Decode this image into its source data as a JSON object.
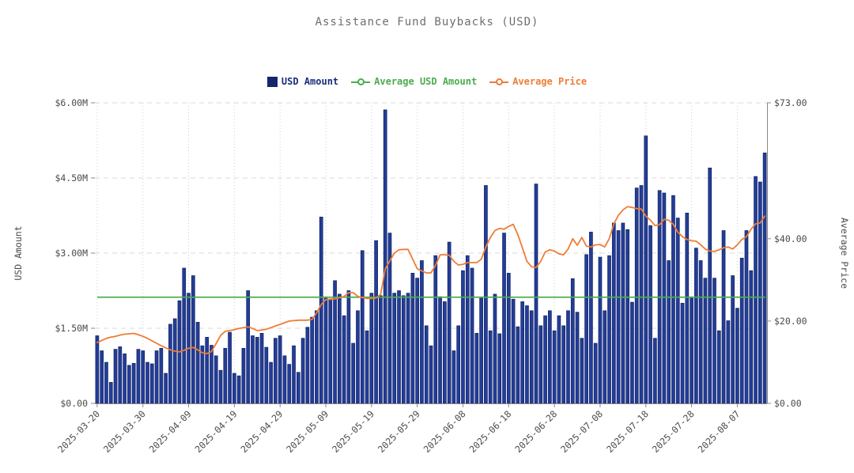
{
  "title": "Assistance Fund Buybacks (USD)",
  "legend": {
    "items": [
      {
        "label": "USD Amount",
        "type": "bar",
        "color": "#15256e"
      },
      {
        "label": "Average USD Amount",
        "type": "line",
        "color": "#4cac4f"
      },
      {
        "label": "Average Price",
        "type": "line",
        "color": "#ee7d36"
      }
    ]
  },
  "axes": {
    "left": {
      "label": "USD Amount",
      "tick_labels": [
        "$0.00",
        "$1.50M",
        "$3.00M",
        "$4.50M",
        "$6.00M"
      ],
      "tick_values": [
        0,
        1.5,
        3,
        4.5,
        6
      ]
    },
    "right": {
      "label": "Average Price",
      "tick_labels": [
        "$0.00",
        "$20.00",
        "$40.00",
        "$73.00"
      ],
      "tick_values": [
        0,
        20,
        40,
        73
      ]
    },
    "x": {
      "tick_labels": [
        "2025-03-20",
        "2025-03-30",
        "2025-04-09",
        "2025-04-19",
        "2025-04-29",
        "2025-05-09",
        "2025-05-19",
        "2025-05-29",
        "2025-06-08",
        "2025-06-18",
        "2025-06-28",
        "2025-07-08",
        "2025-07-18",
        "2025-07-28",
        "2025-08-07"
      ],
      "tick_day_indices": [
        0,
        10,
        20,
        30,
        40,
        50,
        60,
        70,
        80,
        90,
        100,
        110,
        120,
        130,
        140
      ]
    }
  },
  "chart_data": {
    "type": "combo",
    "x_start_date": "2025-03-20",
    "x_end_date": "2025-08-13",
    "x_frequency": "daily",
    "left_axis_range": [
      0,
      6
    ],
    "left_axis_unit": "USD millions",
    "right_axis_range": [
      0,
      73
    ],
    "right_axis_unit": "USD",
    "grid": true,
    "legend_position": "top-center",
    "series": [
      {
        "name": "USD Amount",
        "type": "bar",
        "axis": "left",
        "color": "#243d96",
        "edge_color": "#0e2167",
        "values": [
          1.35,
          1.05,
          0.82,
          0.42,
          1.08,
          1.13,
          0.99,
          0.76,
          0.8,
          1.08,
          1.05,
          0.82,
          0.79,
          1.05,
          1.1,
          0.6,
          1.58,
          1.69,
          2.05,
          2.7,
          2.2,
          2.55,
          1.62,
          1.15,
          1.32,
          1.16,
          0.95,
          0.66,
          1.1,
          1.42,
          0.6,
          0.55,
          1.1,
          2.25,
          1.35,
          1.32,
          1.4,
          1.12,
          0.82,
          1.3,
          1.35,
          0.95,
          0.78,
          1.15,
          0.62,
          1.3,
          1.52,
          1.72,
          1.85,
          3.72,
          2.1,
          2.08,
          2.45,
          2.18,
          1.75,
          2.25,
          1.2,
          1.85,
          3.05,
          1.45,
          2.2,
          3.25,
          2.15,
          5.86,
          3.4,
          2.2,
          2.25,
          2.15,
          2.2,
          2.6,
          2.5,
          2.85,
          1.55,
          1.15,
          2.95,
          2.13,
          2.03,
          3.22,
          1.05,
          1.55,
          2.65,
          2.95,
          2.7,
          1.4,
          2.1,
          4.35,
          1.45,
          2.18,
          1.39,
          3.4,
          2.6,
          2.08,
          1.53,
          2.03,
          1.95,
          1.85,
          4.38,
          1.55,
          1.75,
          1.85,
          1.45,
          1.75,
          1.55,
          1.85,
          2.49,
          1.82,
          1.3,
          2.97,
          3.42,
          1.2,
          2.92,
          1.85,
          2.95,
          3.6,
          3.45,
          3.6,
          3.47,
          2.02,
          4.3,
          4.35,
          5.34,
          3.55,
          1.3,
          4.25,
          4.2,
          2.85,
          4.15,
          3.7,
          2.0,
          3.8,
          2.1,
          3.1,
          2.85,
          2.5,
          4.7,
          2.5,
          1.45,
          3.45,
          1.65,
          2.55,
          1.9,
          2.9,
          3.45,
          2.65,
          4.53,
          4.42,
          5.0
        ]
      },
      {
        "name": "Average USD Amount",
        "type": "line",
        "axis": "left",
        "color": "#4cac4f",
        "constant_value": 2.12
      },
      {
        "name": "Average Price",
        "type": "line",
        "axis": "right",
        "color": "#ee7d36",
        "values": [
          14.8,
          15.3,
          15.8,
          16.1,
          16.3,
          16.6,
          16.8,
          16.9,
          17.0,
          16.7,
          16.3,
          15.8,
          15.2,
          14.6,
          14.0,
          13.5,
          13.0,
          12.7,
          12.5,
          12.9,
          13.4,
          13.6,
          13.0,
          12.3,
          12.1,
          12.6,
          14.5,
          16.5,
          17.5,
          17.7,
          17.9,
          18.2,
          18.4,
          18.6,
          18.2,
          17.7,
          17.8,
          18.0,
          18.4,
          18.8,
          19.2,
          19.6,
          20.0,
          20.1,
          20.2,
          20.2,
          20.2,
          20.4,
          22.0,
          24.0,
          25.2,
          25.3,
          25.4,
          25.7,
          26.0,
          26.9,
          26.9,
          26.0,
          25.7,
          25.5,
          25.5,
          25.6,
          26.5,
          32.7,
          34.6,
          36.5,
          37.3,
          37.4,
          37.4,
          35.0,
          32.7,
          32.2,
          31.7,
          31.7,
          33.5,
          36.1,
          36.1,
          36.0,
          34.5,
          33.6,
          33.8,
          34.2,
          34.2,
          34.2,
          35.0,
          38.0,
          40.3,
          42.0,
          42.5,
          42.3,
          43.0,
          43.5,
          41.0,
          37.8,
          34.5,
          33.2,
          33.0,
          34.5,
          36.8,
          37.3,
          37.0,
          36.3,
          36.1,
          37.5,
          40.0,
          38.4,
          40.3,
          38.2,
          38.0,
          38.5,
          38.6,
          38.0,
          40.0,
          43.6,
          45.7,
          47.0,
          47.8,
          47.6,
          47.3,
          47.2,
          45.5,
          44.5,
          43.2,
          43.4,
          44.7,
          44.5,
          43.5,
          41.6,
          40.5,
          39.8,
          39.5,
          39.4,
          38.5,
          37.5,
          37.0,
          36.9,
          37.3,
          37.8,
          38.0,
          37.5,
          38.5,
          39.8,
          40.5,
          42.3,
          43.6,
          43.8,
          45.5
        ]
      }
    ]
  },
  "style": {
    "grid_color": "#d9d9d9",
    "tick_text_color": "#4a4a4a",
    "axis_line_color": "#888888",
    "title_color": "#6e6e6e"
  }
}
